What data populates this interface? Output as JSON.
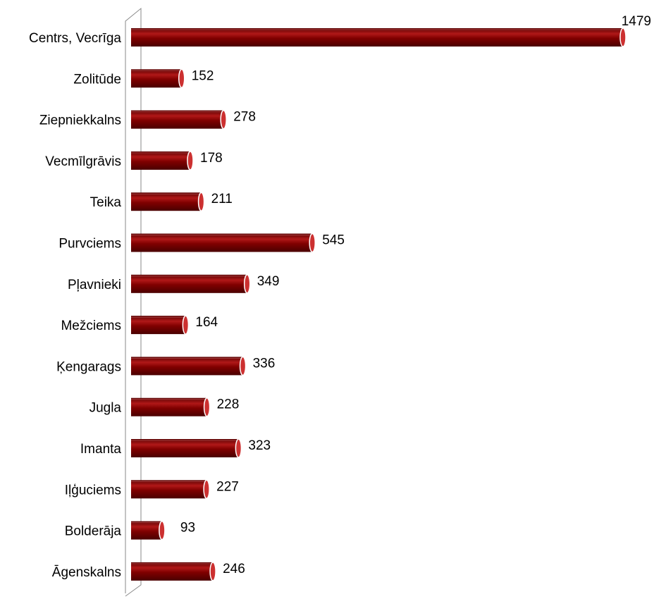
{
  "chart_data": {
    "type": "bar",
    "orientation": "horizontal",
    "categories": [
      "Centrs, Vecrīga",
      "Zolitūde",
      "Ziepniekkalns",
      "Vecmīlgrāvis",
      "Teika",
      "Purvciems",
      "Pļavnieki",
      "Mežciems",
      "Ķengarags",
      "Jugla",
      "Imanta",
      "Iļģuciems",
      "Bolderāja",
      "Āgenskalns"
    ],
    "values": [
      1479,
      152,
      278,
      178,
      211,
      545,
      349,
      164,
      336,
      228,
      323,
      227,
      93,
      246
    ],
    "data_labels": [
      "1479",
      "152",
      "278",
      "178",
      "211",
      "545",
      "349",
      "164",
      "336",
      "228",
      "323",
      "227",
      "93",
      "246"
    ],
    "title": "",
    "xlabel": "",
    "ylabel": "",
    "xlim": [
      0,
      1479
    ],
    "grid": false,
    "legend": "none",
    "style": "3d-cylinder",
    "colors": {
      "bar": "#800000",
      "bar_highlight": "#b01818",
      "bar_end": "#cc3030",
      "axis": "#8a8a8a"
    }
  }
}
